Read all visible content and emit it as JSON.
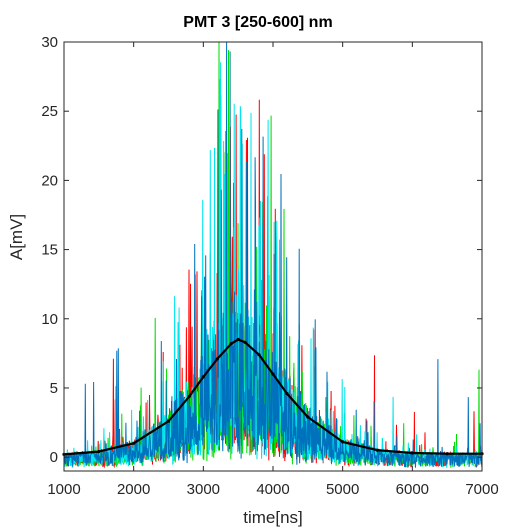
{
  "chart_data": {
    "type": "line",
    "title": "PMT 3 [250-600] nm",
    "xlabel": "time[ns]",
    "ylabel": "A[mV]",
    "xlim": [
      1000,
      7000
    ],
    "ylim": [
      -1,
      30
    ],
    "xticks": [
      1000,
      2000,
      3000,
      4000,
      5000,
      6000,
      7000
    ],
    "yticks": [
      0,
      5,
      10,
      15,
      20,
      25,
      30
    ],
    "grid": false,
    "trace_colors": [
      "#ff0000",
      "#00dd00",
      "#00e5ee",
      "#0072bd"
    ],
    "fit_color": "#000000",
    "fit": {
      "type": "gaussian",
      "x": [
        1000,
        1500,
        2000,
        2500,
        2800,
        3000,
        3200,
        3400,
        3500,
        3600,
        3800,
        4000,
        4200,
        4500,
        5000,
        5500,
        6000,
        6500,
        7000
      ],
      "y": [
        0.2,
        0.4,
        1.0,
        2.6,
        4.4,
        5.8,
        7.1,
        8.2,
        8.5,
        8.3,
        7.4,
        6.0,
        4.6,
        2.9,
        1.1,
        0.5,
        0.3,
        0.25,
        0.25
      ]
    }
  }
}
